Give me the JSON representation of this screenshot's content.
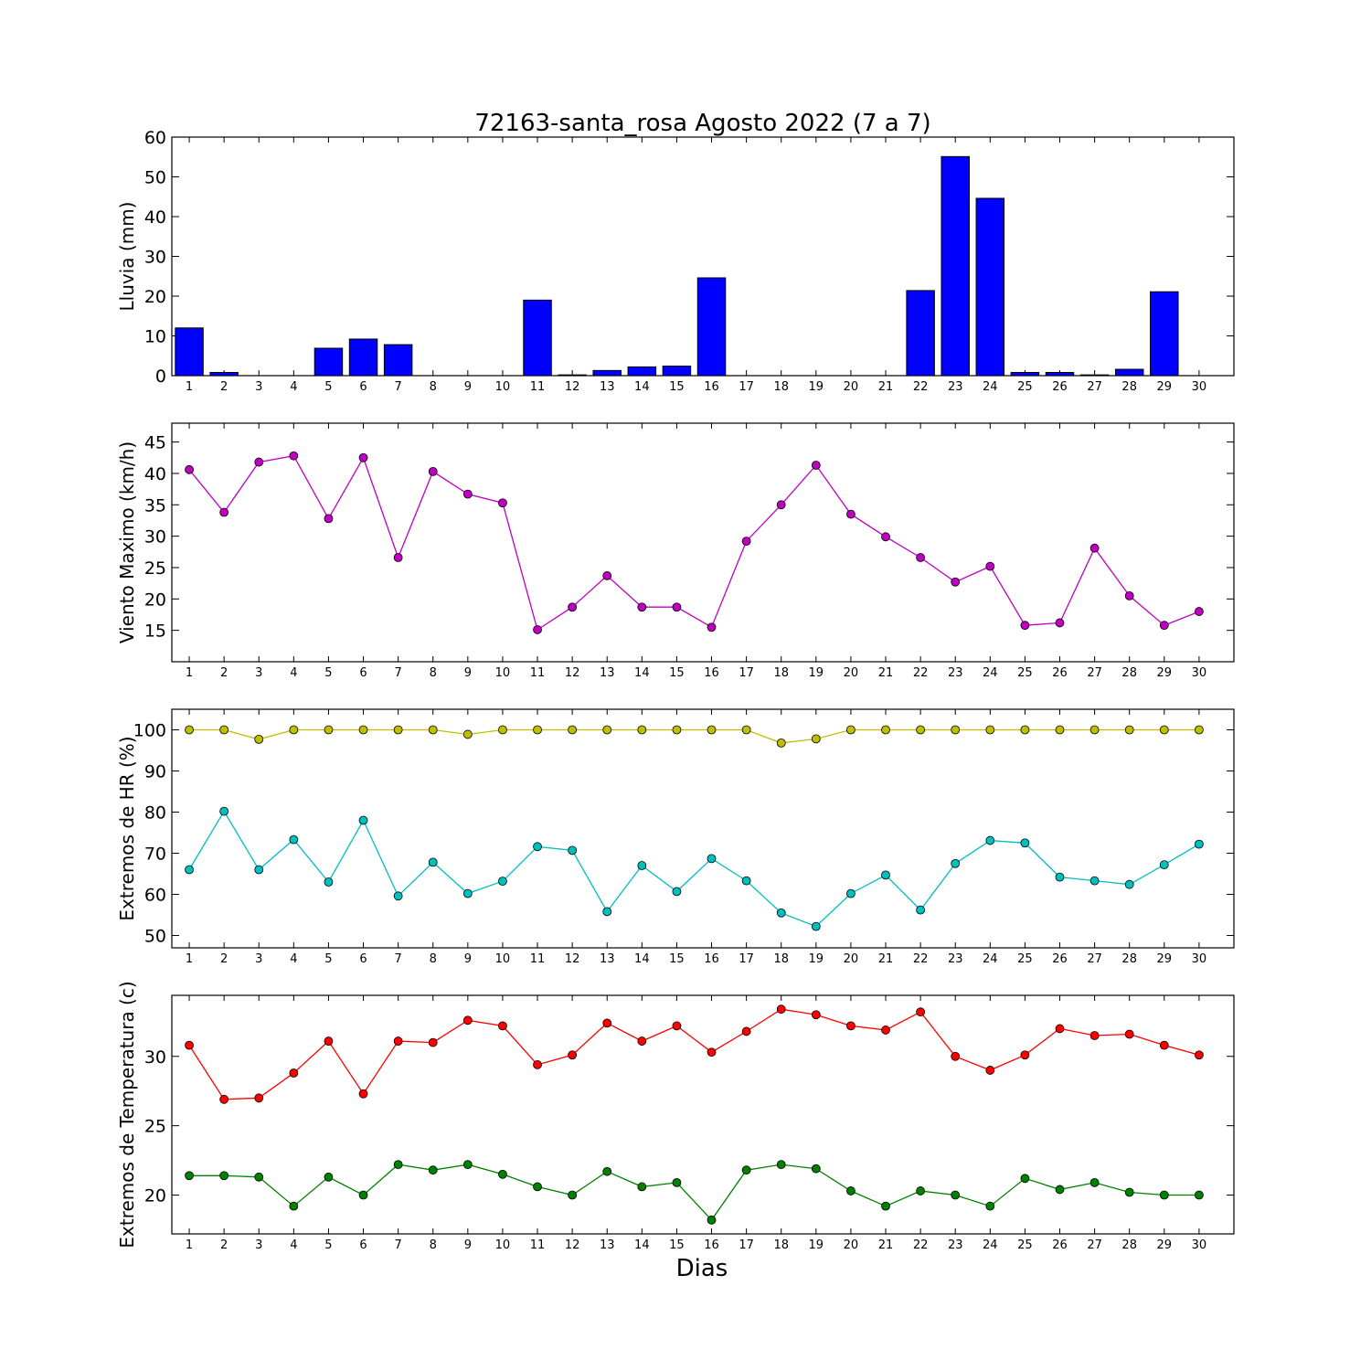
{
  "title": "72163-santa_rosa Agosto 2022  (7 a 7)",
  "xlabel": "Dias",
  "chart_data": [
    {
      "type": "bar",
      "ylabel": "Lluvia (mm)",
      "ylim": [
        0,
        60
      ],
      "yticks": [
        0,
        10,
        20,
        30,
        40,
        50,
        60
      ],
      "categories": [
        1,
        2,
        3,
        4,
        5,
        6,
        7,
        8,
        9,
        10,
        11,
        12,
        13,
        14,
        15,
        16,
        17,
        18,
        19,
        20,
        21,
        22,
        23,
        24,
        25,
        26,
        27,
        28,
        29,
        30
      ],
      "series": [
        {
          "color": "#0000ff",
          "values": [
            12.0,
            0.8,
            0,
            0,
            6.9,
            9.2,
            7.8,
            0,
            0,
            0,
            19.0,
            0.2,
            1.3,
            2.2,
            2.4,
            24.6,
            0,
            0,
            0,
            0,
            0,
            21.4,
            55.1,
            44.6,
            0.8,
            0.8,
            0.2,
            1.6,
            21.1,
            0
          ]
        }
      ]
    },
    {
      "type": "line",
      "ylabel": "Viento Maximo (km/h)",
      "ylim": [
        10,
        48
      ],
      "yticks": [
        15,
        20,
        25,
        30,
        35,
        40,
        45
      ],
      "categories": [
        1,
        2,
        3,
        4,
        5,
        6,
        7,
        8,
        9,
        10,
        11,
        12,
        13,
        14,
        15,
        16,
        17,
        18,
        19,
        20,
        21,
        22,
        23,
        24,
        25,
        26,
        27,
        28,
        29,
        30
      ],
      "series": [
        {
          "color": "#bf00bf",
          "values": [
            40.6,
            33.8,
            41.8,
            42.8,
            32.8,
            42.5,
            26.6,
            40.3,
            36.7,
            35.3,
            15.1,
            18.7,
            23.7,
            18.7,
            18.7,
            15.5,
            29.2,
            35.0,
            41.3,
            33.5,
            29.9,
            26.6,
            22.7,
            25.2,
            15.8,
            16.2,
            28.1,
            20.5,
            15.8,
            18.0
          ]
        }
      ]
    },
    {
      "type": "line",
      "ylabel": "Extremos de HR (%)",
      "ylim": [
        47,
        105
      ],
      "yticks": [
        50,
        60,
        70,
        80,
        90,
        100
      ],
      "categories": [
        1,
        2,
        3,
        4,
        5,
        6,
        7,
        8,
        9,
        10,
        11,
        12,
        13,
        14,
        15,
        16,
        17,
        18,
        19,
        20,
        21,
        22,
        23,
        24,
        25,
        26,
        27,
        28,
        29,
        30
      ],
      "series": [
        {
          "color": "#bfbf00",
          "values": [
            100,
            100,
            97.7,
            100,
            100,
            100,
            100,
            100,
            98.9,
            100,
            100,
            100,
            100,
            100,
            100,
            100,
            100,
            96.8,
            97.8,
            100,
            100,
            100,
            100,
            100,
            100,
            100,
            100,
            100,
            100,
            100
          ]
        },
        {
          "color": "#00bfbf",
          "values": [
            66,
            80.2,
            66,
            73.3,
            63,
            78,
            59.6,
            67.8,
            60.2,
            63.2,
            71.6,
            70.7,
            55.8,
            67,
            60.7,
            68.7,
            63.3,
            55.5,
            52.2,
            60.2,
            64.7,
            56.2,
            67.5,
            73.1,
            72.5,
            64.2,
            63.3,
            62.4,
            67.2,
            72.2
          ]
        }
      ]
    },
    {
      "type": "line",
      "ylabel": "Extremos de Temperatura (c)",
      "ylim": [
        17.2,
        34.4
      ],
      "yticks": [
        20,
        25,
        30
      ],
      "categories": [
        1,
        2,
        3,
        4,
        5,
        6,
        7,
        8,
        9,
        10,
        11,
        12,
        13,
        14,
        15,
        16,
        17,
        18,
        19,
        20,
        21,
        22,
        23,
        24,
        25,
        26,
        27,
        28,
        29,
        30
      ],
      "series": [
        {
          "color": "#ff0000",
          "values": [
            30.8,
            26.9,
            27.0,
            28.8,
            31.1,
            27.3,
            31.1,
            31.0,
            32.6,
            32.2,
            29.4,
            30.1,
            32.4,
            31.1,
            32.2,
            30.3,
            31.8,
            33.4,
            33.0,
            32.2,
            31.9,
            33.2,
            30.0,
            29.0,
            30.1,
            32.0,
            31.5,
            31.6,
            30.8,
            30.1
          ]
        },
        {
          "color": "#008000",
          "values": [
            21.4,
            21.4,
            21.3,
            19.2,
            21.3,
            20.0,
            22.2,
            21.8,
            22.2,
            21.5,
            20.6,
            20.0,
            21.7,
            20.6,
            20.9,
            18.2,
            21.8,
            22.2,
            21.9,
            20.3,
            19.2,
            20.3,
            20.0,
            19.2,
            21.2,
            20.4,
            20.9,
            20.2,
            20.0,
            20.0
          ]
        }
      ]
    }
  ]
}
